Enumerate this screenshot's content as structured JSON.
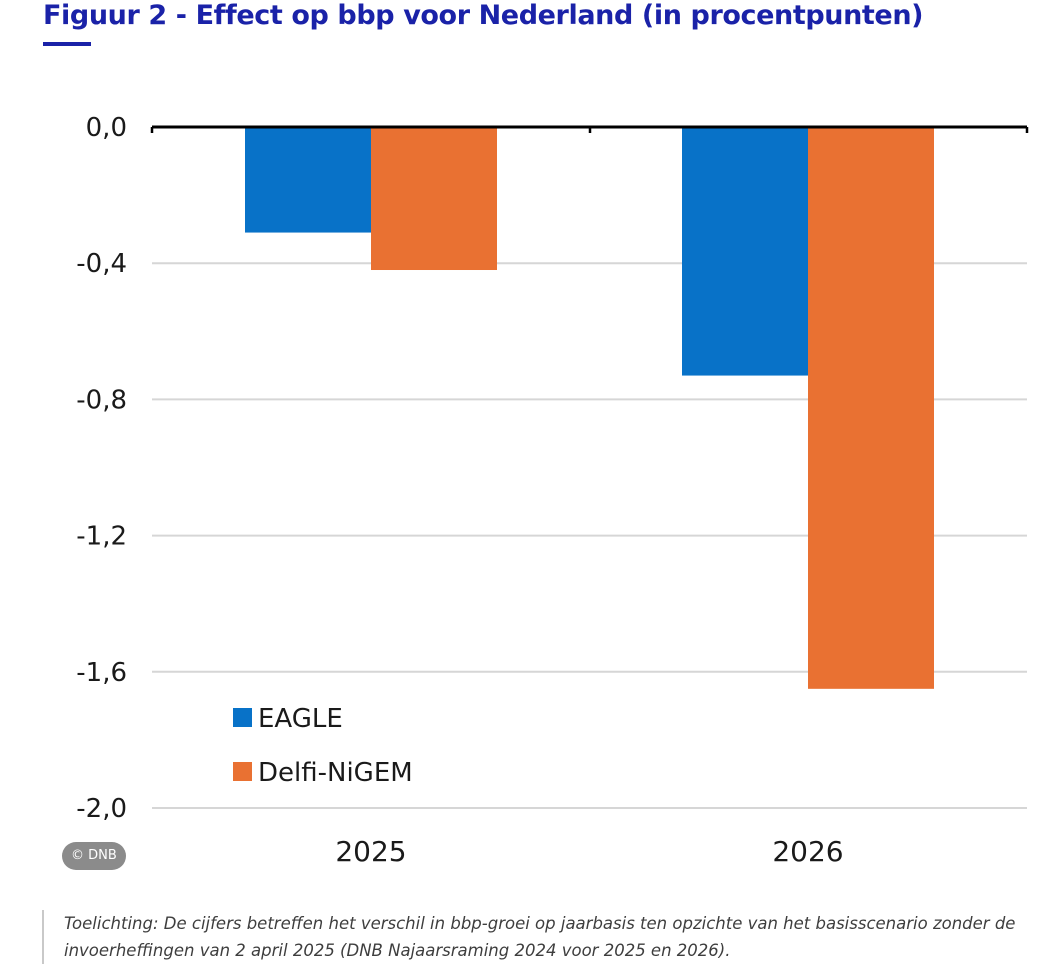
{
  "figure": {
    "title": "Figuur 2 - Effect op bbp voor Nederland (in procentpunten)",
    "copyright": "© DNB",
    "caption": "Toelichting: De cijfers betreffen het verschil in bbp-groei op jaarbasis ten opzichte van het basisscenario zonder de invoerheffingen van 2 april 2025 (DNB Najaarsraming 2024 voor 2025 en 2026)."
  },
  "chart_data": {
    "type": "bar",
    "title": "Figuur 2 - Effect op bbp voor Nederland (in procentpunten)",
    "xlabel": "",
    "ylabel": "",
    "categories": [
      "2025",
      "2026"
    ],
    "series": [
      {
        "name": "EAGLE",
        "values": [
          -0.31,
          -0.73
        ],
        "color": "#0872c8"
      },
      {
        "name": "Delfi-NiGEM",
        "values": [
          -0.42,
          -1.65
        ],
        "color": "#e97132"
      }
    ],
    "ylim": [
      -2.0,
      0.0
    ],
    "yticks": [
      0.0,
      -0.4,
      -0.8,
      -1.2,
      -1.6,
      -2.0
    ],
    "ytick_labels": [
      "0,0",
      "-0,4",
      "-0,8",
      "-1,2",
      "-1,6",
      "-2,0"
    ],
    "grid": true,
    "legend_position": "bottom-left"
  }
}
